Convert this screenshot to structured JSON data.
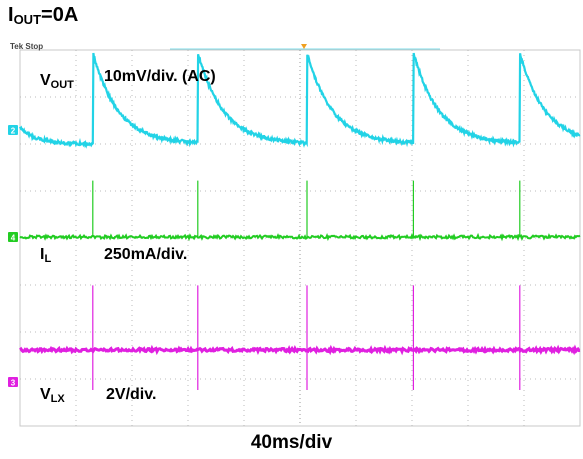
{
  "figure": {
    "title_main": "I",
    "title_sub": "OUT",
    "title_rest": "=0A",
    "status": "Tek Stop"
  },
  "labels": {
    "vout_main": "V",
    "vout_sub": "OUT",
    "vout_scale": "10mV/div. (AC)",
    "il_main": "I",
    "il_sub": "L",
    "il_scale": "250mA/div.",
    "vlx_main": "V",
    "vlx_sub": "LX",
    "vlx_scale": "2V/div.",
    "xaxis": "40ms/div"
  },
  "chart_data": {
    "type": "line",
    "title": "IOUT=0A",
    "xlabel": "40ms/div",
    "time_per_div_ms": 40,
    "x_divisions": 10,
    "grid": true,
    "x_range_ms": [
      0,
      400
    ],
    "pulse_times_ms": [
      52,
      127,
      205,
      281,
      357
    ],
    "series": [
      {
        "name": "VOUT",
        "scale": "10mV/div. (AC)",
        "color": "#22d3e6",
        "channel": "2",
        "shape": "sawtooth",
        "jump_div": 3.0,
        "decay_time_constant_ms": 18
      },
      {
        "name": "IL",
        "scale": "250mA/div.",
        "color": "#22cc22",
        "channel": "4",
        "shape": "spike",
        "spike_height_div": 1.5
      },
      {
        "name": "VLX",
        "scale": "2V/div.",
        "color": "#e020e0",
        "channel": "3",
        "shape": "spike",
        "spike_height_div": 2.5
      }
    ]
  }
}
